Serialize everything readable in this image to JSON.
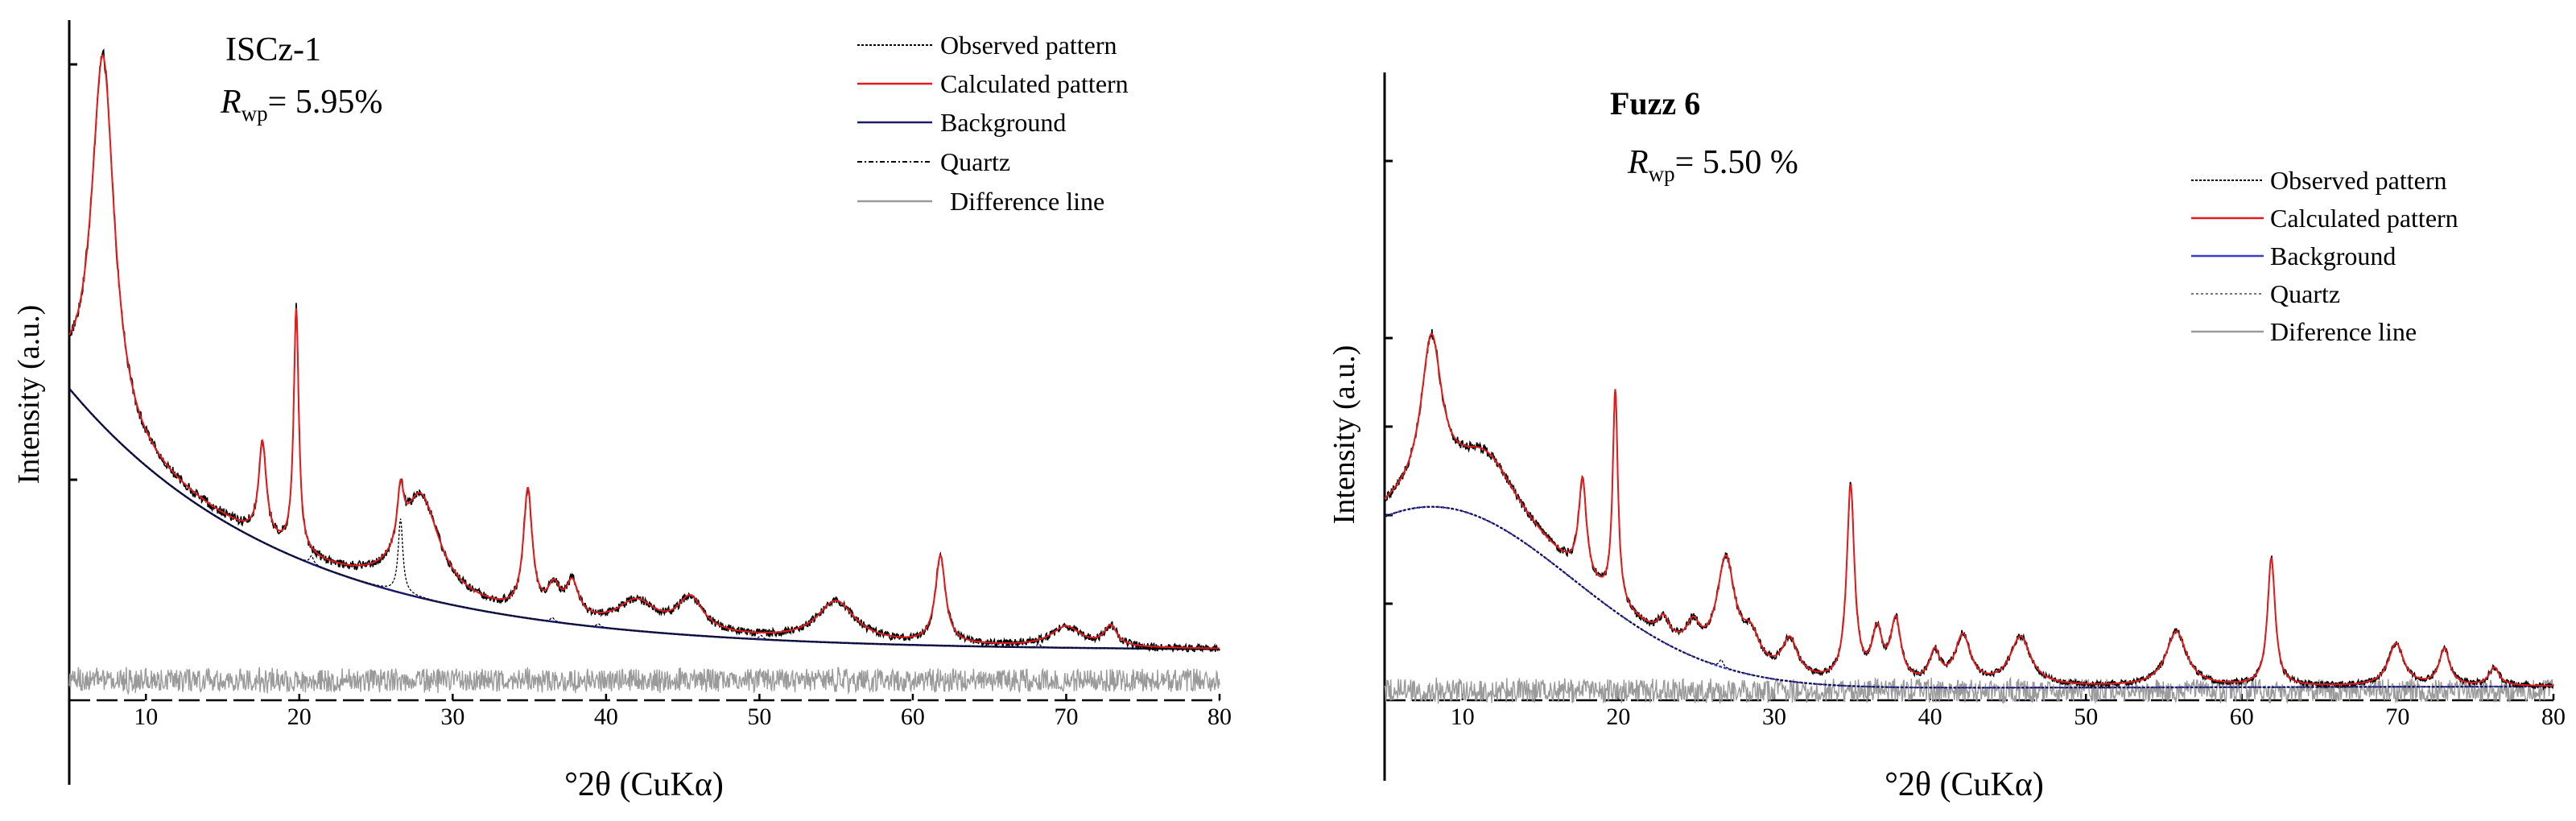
{
  "colors": {
    "observed": "#000000",
    "calculated": "#e41a1c",
    "background_left": "#1a1a66",
    "background_right": "#3b3bcc",
    "quartz": "#000000",
    "difference": "#9a9a9a",
    "axis": "#000000"
  },
  "chart_data": [
    {
      "type": "line",
      "sample_name": "ISCz-1",
      "rwp_symbol": "R",
      "rwp_subscript": "wp",
      "rwp_value": "= 5.95%",
      "xlabel": "°2θ (CuKα)",
      "ylabel": "Intensity (a.u.)",
      "xlim": [
        5,
        80
      ],
      "ylim": [
        0,
        100
      ],
      "xticks": [
        10,
        20,
        30,
        40,
        50,
        60,
        70,
        80
      ],
      "legend_position": "top-right",
      "legend": [
        "Observed pattern",
        "Calculated pattern",
        "Background",
        "Quartz",
        "Difference line"
      ],
      "background": {
        "type": "decay",
        "start": 5,
        "start_value": 47,
        "end_value": 10,
        "decay": 0.07,
        "offset": 8
      },
      "peaks": [
        {
          "x": 7.2,
          "h": 55,
          "w": 0.9
        },
        {
          "x": 17.6,
          "h": 14,
          "w": 0.3
        },
        {
          "x": 19.8,
          "h": 36,
          "w": 0.2
        },
        {
          "x": 26.6,
          "h": 8,
          "w": 0.25
        },
        {
          "x": 27.9,
          "h": 15,
          "w": 1.5
        },
        {
          "x": 34.9,
          "h": 18,
          "w": 0.35
        },
        {
          "x": 36.6,
          "h": 4,
          "w": 0.5
        },
        {
          "x": 37.8,
          "h": 5,
          "w": 0.5
        },
        {
          "x": 42,
          "h": 4,
          "w": 1.5
        },
        {
          "x": 45.5,
          "h": 5,
          "w": 1
        },
        {
          "x": 55,
          "h": 6,
          "w": 1.5
        },
        {
          "x": 61.8,
          "h": 13,
          "w": 0.4
        },
        {
          "x": 70,
          "h": 3,
          "w": 1.2
        },
        {
          "x": 72.9,
          "h": 3,
          "w": 0.5
        }
      ],
      "shoulder": {
        "x": 5,
        "h": 8,
        "w": 2
      },
      "quartz_peaks": [
        {
          "x": 20.8,
          "h": 1.2,
          "w": 0.15
        },
        {
          "x": 26.6,
          "h": 11,
          "w": 0.18
        },
        {
          "x": 36.5,
          "h": 0.6,
          "w": 0.15
        },
        {
          "x": 39.5,
          "h": 0.5,
          "w": 0.15
        },
        {
          "x": 50.1,
          "h": 0.6,
          "w": 0.15
        },
        {
          "x": 68.2,
          "h": 0.5,
          "w": 0.15
        }
      ],
      "difference_baseline": 0,
      "difference_amplitude": 1.8
    },
    {
      "type": "line",
      "sample_name": "Fuzz 6",
      "rwp_symbol": "R",
      "rwp_subscript": "wp",
      "rwp_value": "= 5.50 %",
      "xlabel": "°2θ (CuKα)",
      "ylabel": "Intensity (a.u.)",
      "xlim": [
        5,
        80
      ],
      "ylim": [
        0,
        100
      ],
      "xticks": [
        10,
        20,
        30,
        40,
        50,
        60,
        70,
        80
      ],
      "legend_position": "top-right",
      "legend": [
        "Observed pattern",
        "Calculated pattern",
        "Background",
        "Quartz",
        "Diference line"
      ],
      "background": {
        "type": "hump",
        "center": 8,
        "height": 30,
        "sigma": 9,
        "offset": 2.5,
        "slope": 0.006
      },
      "peaks": [
        {
          "x": 8,
          "h": 25,
          "w": 0.8
        },
        {
          "x": 11.5,
          "h": 10,
          "w": 2.5
        },
        {
          "x": 17.7,
          "h": 16,
          "w": 0.3
        },
        {
          "x": 19.8,
          "h": 35,
          "w": 0.2
        },
        {
          "x": 22.9,
          "h": 3,
          "w": 0.4
        },
        {
          "x": 24.8,
          "h": 4,
          "w": 0.5
        },
        {
          "x": 26.9,
          "h": 17,
          "w": 0.7
        },
        {
          "x": 28.5,
          "h": 5,
          "w": 0.7
        },
        {
          "x": 31,
          "h": 6,
          "w": 0.6
        },
        {
          "x": 34.9,
          "h": 32,
          "w": 0.3
        },
        {
          "x": 36.6,
          "h": 8,
          "w": 0.4
        },
        {
          "x": 37.8,
          "h": 10,
          "w": 0.4
        },
        {
          "x": 40.3,
          "h": 5,
          "w": 0.4
        },
        {
          "x": 42.1,
          "h": 8,
          "w": 0.6
        },
        {
          "x": 45.8,
          "h": 8,
          "w": 0.8
        },
        {
          "x": 55.8,
          "h": 9,
          "w": 0.8
        },
        {
          "x": 61.9,
          "h": 21,
          "w": 0.3
        },
        {
          "x": 69.9,
          "h": 7,
          "w": 0.6
        },
        {
          "x": 73,
          "h": 6,
          "w": 0.4
        },
        {
          "x": 76.2,
          "h": 3,
          "w": 0.4
        }
      ],
      "shoulder": {
        "x": 5,
        "h": 8,
        "w": 2
      },
      "quartz_peaks": [
        {
          "x": 26.6,
          "h": 1.2,
          "w": 0.15
        }
      ],
      "difference_baseline": 0,
      "difference_amplitude": 1.8
    }
  ]
}
